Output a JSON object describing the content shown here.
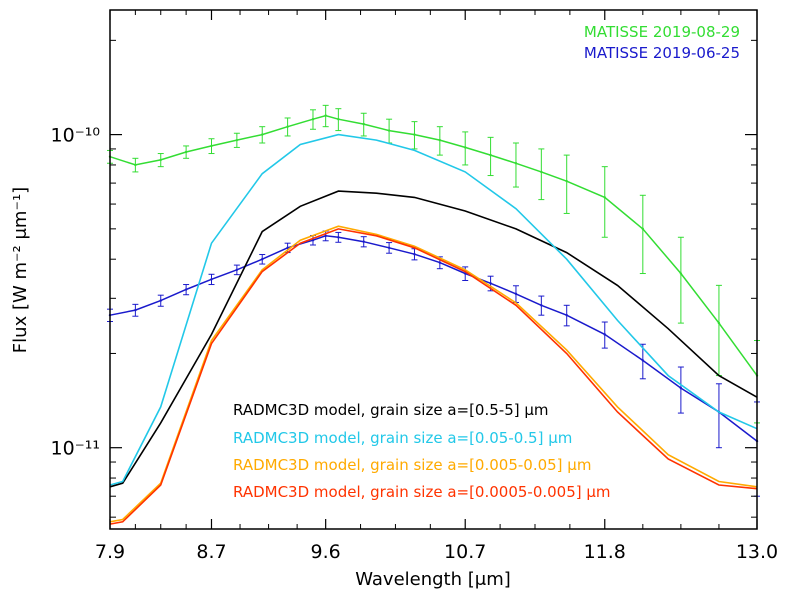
{
  "chart_data": {
    "type": "line",
    "title": "",
    "xlabel": "Wavelength [μm]",
    "ylabel": "Flux [W m⁻² μm⁻¹]",
    "xlim": [
      7.9,
      13.0
    ],
    "ylim": [
      5.5e-12,
      2.5e-10
    ],
    "yscale": "log",
    "x_ticks": [
      7.9,
      8.7,
      9.6,
      10.7,
      11.8,
      13.0
    ],
    "x_tick_labels": [
      "7.9",
      "8.7",
      "9.6",
      "10.7",
      "11.8",
      "13.0"
    ],
    "y_ticks": [
      1e-11,
      1e-10
    ],
    "y_tick_labels": [
      "10⁻¹¹",
      "10⁻¹⁰"
    ],
    "legend_position": "top-right",
    "colors": {
      "green": "#33dd33",
      "blue": "#1a1acc",
      "black": "#000000",
      "cyan": "#22c8e8",
      "orange": "#ffaa00",
      "red": "#ff3300"
    },
    "series": [
      {
        "name": "MATISSE 2019-08-29",
        "kind": "errorbar",
        "color": "#33dd33",
        "x": [
          7.9,
          8.1,
          8.3,
          8.5,
          8.7,
          8.9,
          9.1,
          9.3,
          9.5,
          9.6,
          9.7,
          9.9,
          10.1,
          10.3,
          10.5,
          10.7,
          10.9,
          11.1,
          11.3,
          11.5,
          11.8,
          12.1,
          12.4,
          12.7,
          13.0
        ],
        "y": [
          8.5e-11,
          8e-11,
          8.3e-11,
          8.8e-11,
          9.2e-11,
          9.6e-11,
          1e-10,
          1.06e-10,
          1.12e-10,
          1.15e-10,
          1.12e-10,
          1.08e-10,
          1.03e-10,
          1e-10,
          9.6e-11,
          9.1e-11,
          8.6e-11,
          8.1e-11,
          7.6e-11,
          7.1e-11,
          6.3e-11,
          5e-11,
          3.6e-11,
          2.5e-11,
          1.7e-11
        ],
        "yerr": [
          4e-12,
          4e-12,
          4e-12,
          4e-12,
          5e-12,
          5e-12,
          6e-12,
          7e-12,
          8e-12,
          9e-12,
          9e-12,
          9e-12,
          9e-12,
          1e-11,
          1e-11,
          1.1e-11,
          1.2e-11,
          1.3e-11,
          1.4e-11,
          1.5e-11,
          1.6e-11,
          1.4e-11,
          1.1e-11,
          8e-12,
          5e-12
        ]
      },
      {
        "name": "MATISSE 2019-06-25",
        "kind": "errorbar",
        "color": "#1a1acc",
        "x": [
          7.9,
          8.1,
          8.3,
          8.5,
          8.7,
          8.9,
          9.1,
          9.3,
          9.5,
          9.6,
          9.7,
          9.9,
          10.1,
          10.3,
          10.5,
          10.7,
          10.9,
          11.1,
          11.3,
          11.5,
          11.8,
          12.1,
          12.4,
          12.7,
          13.0
        ],
        "y": [
          2.65e-11,
          2.75e-11,
          2.95e-11,
          3.2e-11,
          3.45e-11,
          3.7e-11,
          4e-11,
          4.35e-11,
          4.6e-11,
          4.75e-11,
          4.7e-11,
          4.55e-11,
          4.35e-11,
          4.15e-11,
          3.9e-11,
          3.6e-11,
          3.35e-11,
          3.1e-11,
          2.85e-11,
          2.65e-11,
          2.3e-11,
          1.9e-11,
          1.55e-11,
          1.3e-11,
          1.05e-11
        ],
        "yerr": [
          1.2e-12,
          1.2e-12,
          1.2e-12,
          1.2e-12,
          1.3e-12,
          1.3e-12,
          1.4e-12,
          1.5e-12,
          1.6e-12,
          1.7e-12,
          1.7e-12,
          1.7e-12,
          1.7e-12,
          1.7e-12,
          1.7e-12,
          1.8e-12,
          1.8e-12,
          1.9e-12,
          2e-12,
          2e-12,
          2.2e-12,
          2.4e-12,
          2.6e-12,
          3e-12,
          3.5e-12
        ]
      },
      {
        "name": "RADMC3D model, grain size a=[0.5-5] μm",
        "kind": "line",
        "color": "#000000",
        "x": [
          7.9,
          8.0,
          8.3,
          8.7,
          9.1,
          9.4,
          9.7,
          10.0,
          10.3,
          10.7,
          11.1,
          11.5,
          11.9,
          12.3,
          12.7,
          13.0
        ],
        "y": [
          7.5e-12,
          7.7e-12,
          1.2e-11,
          2.3e-11,
          4.9e-11,
          5.9e-11,
          6.6e-11,
          6.5e-11,
          6.3e-11,
          5.7e-11,
          5e-11,
          4.2e-11,
          3.3e-11,
          2.4e-11,
          1.7e-11,
          1.45e-11
        ]
      },
      {
        "name": "RADMC3D model, grain size a=[0.05-0.5] μm",
        "kind": "line",
        "color": "#22c8e8",
        "x": [
          7.9,
          8.0,
          8.3,
          8.7,
          9.1,
          9.4,
          9.7,
          10.0,
          10.3,
          10.7,
          11.1,
          11.5,
          11.9,
          12.3,
          12.7,
          13.0
        ],
        "y": [
          7.6e-12,
          7.8e-12,
          1.35e-11,
          4.5e-11,
          7.5e-11,
          9.3e-11,
          1e-10,
          9.6e-11,
          8.9e-11,
          7.6e-11,
          5.8e-11,
          4e-11,
          2.55e-11,
          1.7e-11,
          1.3e-11,
          1.15e-11
        ]
      },
      {
        "name": "RADMC3D model, grain size a=[0.005-0.05] μm",
        "kind": "line",
        "color": "#ffaa00",
        "x": [
          7.9,
          8.0,
          8.3,
          8.7,
          9.1,
          9.4,
          9.7,
          10.0,
          10.3,
          10.7,
          11.1,
          11.5,
          11.9,
          12.3,
          12.7,
          13.0
        ],
        "y": [
          5.8e-12,
          5.9e-12,
          7.7e-12,
          2.2e-11,
          3.7e-11,
          4.6e-11,
          5.1e-11,
          4.8e-11,
          4.4e-11,
          3.7e-11,
          2.9e-11,
          2.05e-11,
          1.35e-11,
          9.5e-12,
          7.8e-12,
          7.5e-12
        ]
      },
      {
        "name": "RADMC3D model, grain size a=[0.0005-0.005] μm",
        "kind": "line",
        "color": "#ff3300",
        "x": [
          7.9,
          8.0,
          8.3,
          8.7,
          9.1,
          9.4,
          9.7,
          10.0,
          10.3,
          10.7,
          11.1,
          11.5,
          11.9,
          12.3,
          12.7,
          13.0
        ],
        "y": [
          5.7e-12,
          5.8e-12,
          7.6e-12,
          2.15e-11,
          3.65e-11,
          4.5e-11,
          5e-11,
          4.75e-11,
          4.35e-11,
          3.65e-11,
          2.85e-11,
          2e-11,
          1.3e-11,
          9.2e-12,
          7.6e-12,
          7.4e-12
        ]
      }
    ],
    "legend": [
      {
        "label": "MATISSE 2019-08-29",
        "color": "#33dd33"
      },
      {
        "label": "MATISSE 2019-06-25",
        "color": "#1a1acc"
      }
    ],
    "model_labels": [
      {
        "label": "RADMC3D model, grain size a=[0.5-5] μm",
        "color": "#000000"
      },
      {
        "label": "RADMC3D model, grain size a=[0.05-0.5] μm",
        "color": "#22c8e8"
      },
      {
        "label": "RADMC3D model, grain size a=[0.005-0.05] μm",
        "color": "#ffaa00"
      },
      {
        "label": "RADMC3D model, grain size a=[0.0005-0.005] μm",
        "color": "#ff3300"
      }
    ]
  }
}
